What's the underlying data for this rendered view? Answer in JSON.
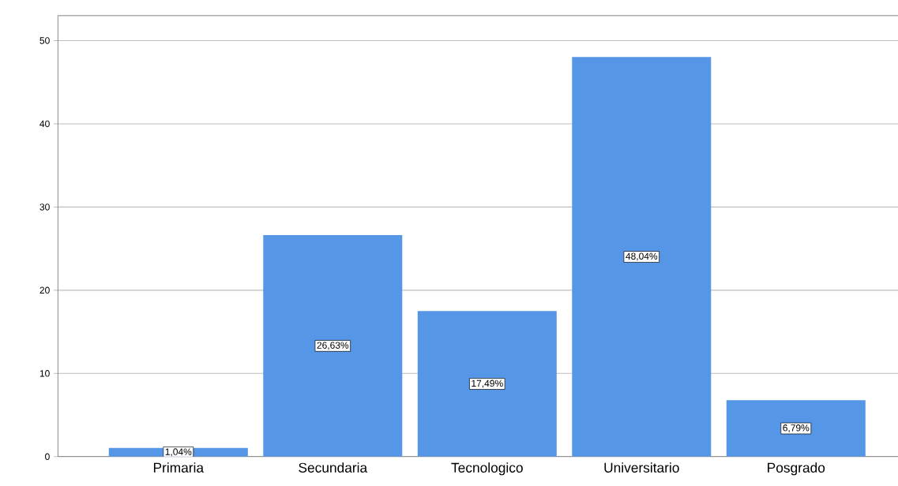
{
  "chart_data": {
    "type": "bar",
    "categories": [
      "Primaria",
      "Secundaria",
      "Tecnologico",
      "Universitario",
      "Posgrado"
    ],
    "values": [
      1.04,
      26.63,
      17.49,
      48.04,
      6.79
    ],
    "color": "#5596e6",
    "value_labels": [
      "1,04%",
      "26,63%",
      "17,49%",
      "48,04%",
      "6,79%"
    ],
    "ylim": [
      0,
      53
    ],
    "yticks": [
      0,
      10,
      20,
      30,
      40,
      50
    ],
    "grid": "y"
  }
}
